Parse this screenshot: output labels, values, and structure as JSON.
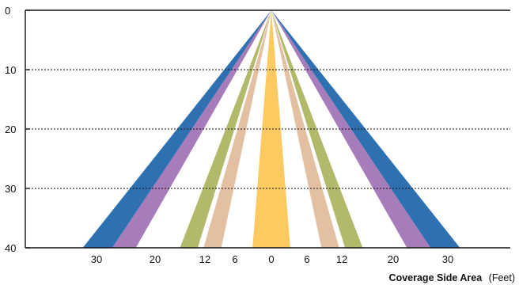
{
  "figure": {
    "xlabel_bold": "Coverage Side Area",
    "xlabel_unit": "(Feet)",
    "y_ticks": [
      "0",
      "10",
      "20",
      "30",
      "40"
    ],
    "x_ticks": [
      "30",
      "20",
      "12",
      "6",
      "0",
      "6",
      "12",
      "20",
      "30"
    ]
  },
  "chart_data": {
    "type": "diagram",
    "description_free": true,
    "y_range": [
      0,
      40
    ],
    "apex_x": 0,
    "beams": [
      {
        "color": "#2e70b0",
        "inner_x": 27,
        "outer_x": 32
      },
      {
        "color": "#a67cba",
        "inner_x": 23,
        "outer_x": 27
      },
      {
        "color": "#b2b96a",
        "inner_x": 12.5,
        "outer_x": 15.5
      },
      {
        "color": "#e3c0a2",
        "inner_x": 8.5,
        "outer_x": 11.5
      },
      {
        "color": "#fdca62",
        "inner_x": 0,
        "outer_x": 3.2,
        "center_pair": true
      }
    ],
    "gridlines_dashed": [
      10,
      20,
      30
    ]
  }
}
